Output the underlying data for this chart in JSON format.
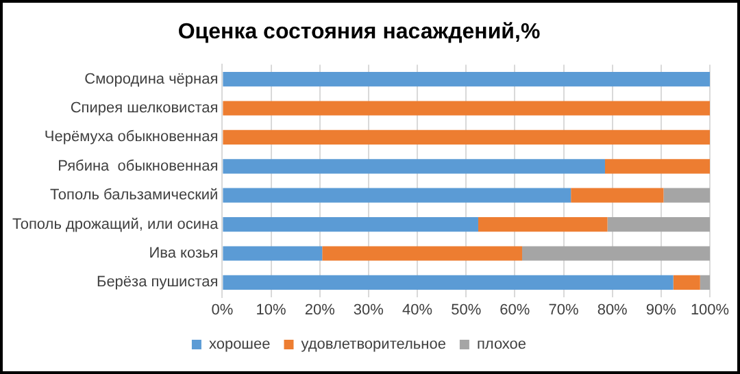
{
  "chart_data": {
    "type": "bar",
    "orientation": "horizontal",
    "stacked": true,
    "title": "Оценка состояния насаждений,%",
    "categories": [
      "Смородина чёрная",
      "Спирея шелковистая",
      "Черёмуха обыкновенная",
      "Рябина  обыкновенная",
      "Тополь бальзамический",
      "Тополь дрожащий, или осина",
      "Ива козья",
      "Берёза пушистая"
    ],
    "series": [
      {
        "name": "хорошее",
        "color": "#5b9bd5",
        "values": [
          100,
          0,
          0,
          78.5,
          71.5,
          52.5,
          20.5,
          92.5
        ]
      },
      {
        "name": "удовлетворительное",
        "color": "#ed7d31",
        "values": [
          0,
          100,
          100,
          21.5,
          19,
          26.5,
          41,
          5.5
        ]
      },
      {
        "name": "плохое",
        "color": "#a5a5a5",
        "values": [
          0,
          0,
          0,
          0,
          9.5,
          21,
          38.5,
          2
        ]
      }
    ],
    "xlim": [
      0,
      100
    ],
    "xticks": [
      {
        "value": 0,
        "label": "0%"
      },
      {
        "value": 10,
        "label": "10%"
      },
      {
        "value": 20,
        "label": "20%"
      },
      {
        "value": 30,
        "label": "30%"
      },
      {
        "value": 40,
        "label": "40%"
      },
      {
        "value": 50,
        "label": "50%"
      },
      {
        "value": 60,
        "label": "60%"
      },
      {
        "value": 70,
        "label": "70%"
      },
      {
        "value": 80,
        "label": "80%"
      },
      {
        "value": 90,
        "label": "90%"
      },
      {
        "value": 100,
        "label": "100%"
      }
    ],
    "grid": "x",
    "legend": "bottom"
  }
}
